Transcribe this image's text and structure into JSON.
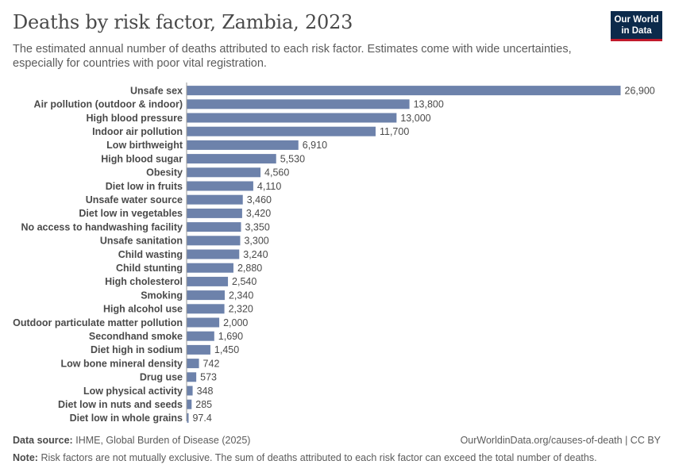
{
  "header": {
    "title": "Deaths by risk factor, Zambia, 2023",
    "subtitle": "The estimated annual number of deaths attributed to each risk factor. Estimates come with wide uncertainties, especially for countries with poor vital registration.",
    "logo_line1": "Our World",
    "logo_line2": "in Data"
  },
  "footer": {
    "source_label": "Data source:",
    "source_text": "IHME, Global Burden of Disease (2025)",
    "url_text": "OurWorldinData.org/causes-of-death | CC BY",
    "note_label": "Note:",
    "note_text": "Risk factors are not mutually exclusive. The sum of deaths attributed to each risk factor can exceed the total number of deaths."
  },
  "colors": {
    "bar": "#6d82ab",
    "logo_bg": "#0c2a4b",
    "logo_accent": "#c2192b"
  },
  "chart_data": {
    "type": "bar",
    "orientation": "horizontal",
    "grid": false,
    "categories": [
      "Unsafe sex",
      "Air pollution (outdoor & indoor)",
      "High blood pressure",
      "Indoor air pollution",
      "Low birthweight",
      "High blood sugar",
      "Obesity",
      "Diet low in fruits",
      "Unsafe water source",
      "Diet low in vegetables",
      "No access to handwashing facility",
      "Unsafe sanitation",
      "Child wasting",
      "Child stunting",
      "High cholesterol",
      "Smoking",
      "High alcohol use",
      "Outdoor particulate matter pollution",
      "Secondhand smoke",
      "Diet high in sodium",
      "Low bone mineral density",
      "Drug use",
      "Low physical activity",
      "Diet low in nuts and seeds",
      "Diet low in whole grains"
    ],
    "values": [
      26900,
      13800,
      13000,
      11700,
      6910,
      5530,
      4560,
      4110,
      3460,
      3420,
      3350,
      3300,
      3240,
      2880,
      2540,
      2340,
      2320,
      2000,
      1690,
      1450,
      742,
      573,
      348,
      285,
      97.4
    ],
    "value_labels": [
      "26,900",
      "13,800",
      "13,000",
      "11,700",
      "6,910",
      "5,530",
      "4,560",
      "4,110",
      "3,460",
      "3,420",
      "3,350",
      "3,300",
      "3,240",
      "2,880",
      "2,540",
      "2,340",
      "2,320",
      "2,000",
      "1,690",
      "1,450",
      "742",
      "573",
      "348",
      "285",
      "97.4"
    ]
  }
}
